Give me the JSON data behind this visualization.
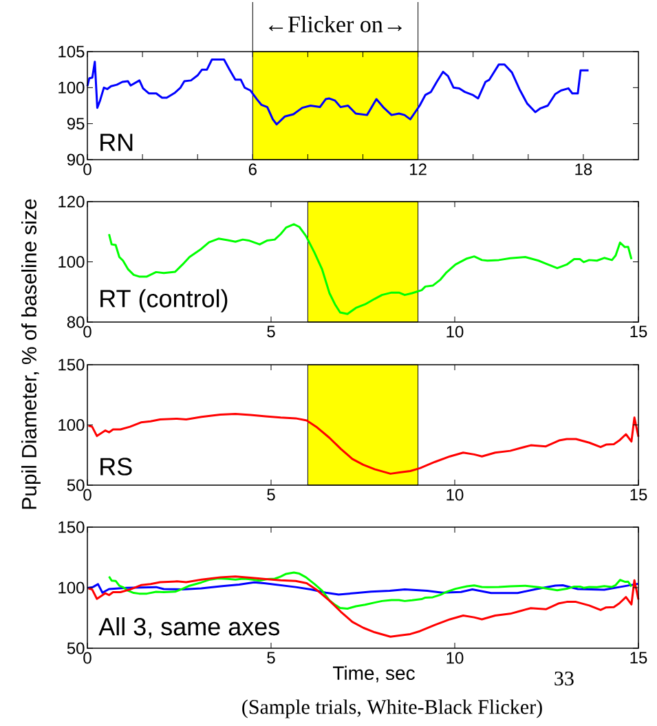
{
  "chart_data": [
    {
      "type": "line",
      "title": "RN",
      "ylabel": "Pupil Diameter, % of baseline size",
      "xlim": [
        0,
        20
      ],
      "ylim": [
        90,
        105
      ],
      "xticks": [
        0,
        {
          "value": 2,
          "label": null
        },
        {
          "value": 4,
          "label": null
        },
        6,
        {
          "value": 8,
          "label": null
        },
        {
          "value": 10,
          "label": null
        },
        12,
        {
          "value": 14,
          "label": null
        },
        {
          "value": 16,
          "label": null
        },
        18
      ],
      "yticks": [
        90,
        95,
        100,
        105
      ],
      "bands": [
        {
          "axis": "x",
          "from": 6,
          "to": 12,
          "label": "←Flicker on→",
          "color": "#ffff00"
        }
      ],
      "series": [
        {
          "color": "#0000ff",
          "x": [
            0,
            0.07,
            0.18,
            0.27,
            0.36,
            0.46,
            0.6,
            0.72,
            0.86,
            1.07,
            1.27,
            1.47,
            1.57,
            1.89,
            2.02,
            2.23,
            2.5,
            2.71,
            2.88,
            3.18,
            3.38,
            3.52,
            3.76,
            4.0,
            4.16,
            4.34,
            4.52,
            4.96,
            5.16,
            5.37,
            5.57,
            5.71,
            5.92,
            6.15,
            6.32,
            6.53,
            6.73,
            6.87,
            7.17,
            7.48,
            7.8,
            8.1,
            8.44,
            8.65,
            8.78,
            8.99,
            9.19,
            9.46,
            9.74,
            10.15,
            10.49,
            10.76,
            11.04,
            11.31,
            11.51,
            11.72,
            12.06,
            12.27,
            12.47,
            12.68,
            12.91,
            13.09,
            13.29,
            13.5,
            13.7,
            13.98,
            14.18,
            14.45,
            14.59,
            14.93,
            15.14,
            15.41,
            15.68,
            15.96,
            16.26,
            16.43,
            16.71,
            16.98,
            17.19,
            17.46,
            17.6,
            17.8,
            17.9,
            18.19
          ],
          "values": [
            100.2,
            101.3,
            101.4,
            103.6,
            97.2,
            98.2,
            100,
            99.8,
            100.2,
            100.4,
            100.8,
            100.9,
            100.3,
            101,
            99.9,
            99.2,
            99.2,
            98.6,
            98.6,
            99.3,
            100,
            100.9,
            101,
            101.7,
            102.5,
            102.5,
            103.9,
            103.9,
            102.5,
            101.1,
            101.1,
            100,
            99.6,
            98.4,
            97.6,
            97.3,
            95.6,
            94.9,
            96,
            96.3,
            97.2,
            97.5,
            97.3,
            98.4,
            98.5,
            98.2,
            97.3,
            97.5,
            96.4,
            96.2,
            98.4,
            97.2,
            96.2,
            96.4,
            96.2,
            95.6,
            97.5,
            99,
            99.4,
            100.8,
            102.2,
            101.6,
            100,
            99.9,
            99.4,
            99,
            98.5,
            100.8,
            101.1,
            103.2,
            103.2,
            102.1,
            99.8,
            97.8,
            96.6,
            97.1,
            97.5,
            99.1,
            99.6,
            99.9,
            99.2,
            99.2,
            102.4,
            102.4
          ]
        }
      ]
    },
    {
      "type": "line",
      "title": "RT (control)",
      "xlim": [
        0,
        15
      ],
      "ylim": [
        80,
        120
      ],
      "xticks": [
        0,
        5,
        10,
        15
      ],
      "yticks": [
        80,
        100,
        120
      ],
      "bands": [
        {
          "axis": "x",
          "from": 6,
          "to": 9,
          "color": "#ffff00"
        }
      ],
      "series": [
        {
          "color": "#00ff00",
          "x": [
            0.59,
            0.66,
            0.77,
            0.87,
            0.97,
            1.11,
            1.26,
            1.41,
            1.62,
            1.87,
            2.08,
            2.39,
            2.59,
            2.78,
            3.1,
            3.31,
            3.57,
            3.82,
            4.03,
            4.23,
            4.39,
            4.69,
            4.9,
            5.1,
            5.26,
            5.41,
            5.62,
            5.77,
            5.95,
            6.18,
            6.39,
            6.59,
            6.74,
            6.88,
            7.08,
            7.31,
            7.56,
            7.82,
            8.02,
            8.28,
            8.48,
            8.64,
            8.84,
            9.1,
            9.2,
            9.4,
            9.61,
            9.76,
            10.02,
            10.33,
            10.53,
            10.74,
            10.89,
            11.2,
            11.51,
            11.92,
            12.28,
            12.48,
            12.79,
            13.05,
            13.25,
            13.41,
            13.51,
            13.66,
            13.87,
            14.07,
            14.28,
            14.38,
            14.5,
            14.63,
            14.72,
            14.81
          ],
          "values": [
            109.2,
            105.8,
            105.6,
            101.6,
            100.4,
            97.5,
            95.7,
            95.1,
            95.1,
            96.6,
            96.3,
            96.7,
            99.1,
            101.6,
            104.3,
            106.5,
            107.7,
            107.2,
            106.7,
            107.4,
            107.1,
            105.8,
            107.1,
            107.4,
            109.2,
            111.4,
            112.5,
            111.6,
            108.6,
            103.1,
            97.5,
            89.6,
            85.9,
            83.2,
            82.7,
            84.7,
            85.9,
            87.7,
            89,
            89.8,
            89.8,
            89,
            89.6,
            90.6,
            91.8,
            92.1,
            94.1,
            96.3,
            99.1,
            101.1,
            101.8,
            100.6,
            100.4,
            100.6,
            101.2,
            101.6,
            100.4,
            99.4,
            97.9,
            99.1,
            100.9,
            100.9,
            99.9,
            100.6,
            100.4,
            101.3,
            100.6,
            102.1,
            106.4,
            104.9,
            105.0,
            100.9
          ]
        }
      ]
    },
    {
      "type": "line",
      "title": "RS",
      "xlim": [
        0,
        15
      ],
      "ylim": [
        50,
        150
      ],
      "xticks": [
        0,
        5,
        10,
        15
      ],
      "yticks": [
        50,
        100,
        150
      ],
      "bands": [
        {
          "axis": "x",
          "from": 6,
          "to": 9,
          "color": "#ffff00"
        }
      ],
      "series": [
        {
          "color": "#ff0000",
          "x": [
            0.03,
            0.13,
            0.26,
            0.49,
            0.59,
            0.7,
            0.9,
            1.16,
            1.46,
            1.72,
            1.98,
            2.44,
            2.69,
            3.11,
            3.62,
            4.03,
            4.44,
            4.85,
            5.26,
            5.67,
            5.97,
            6.23,
            6.59,
            6.9,
            7.21,
            7.51,
            7.82,
            8.25,
            8.53,
            8.79,
            9.05,
            9.46,
            9.87,
            10.23,
            10.53,
            10.74,
            11.1,
            11.51,
            11.81,
            12.07,
            12.48,
            12.84,
            13.05,
            13.3,
            13.66,
            13.97,
            14.12,
            14.33,
            14.48,
            14.66,
            14.81,
            14.89,
            15.0
          ],
          "values": [
            99.4,
            98.5,
            90.8,
            95.4,
            93.9,
            96.3,
            96.3,
            98.5,
            102.1,
            103,
            104.6,
            105.2,
            104.6,
            106.7,
            108.6,
            109.2,
            108.3,
            107.1,
            106.1,
            105.5,
            103.7,
            98.5,
            89.3,
            80.1,
            71.8,
            66.9,
            63.2,
            59.5,
            60.7,
            61.7,
            64.1,
            69.3,
            73.9,
            77,
            75.5,
            73.9,
            77,
            78.5,
            81,
            83.1,
            82.2,
            87.1,
            88.3,
            88.3,
            85.3,
            81.6,
            83.7,
            84.0,
            87.1,
            92.3,
            86.2,
            106.1,
            90.2
          ]
        }
      ]
    },
    {
      "type": "line",
      "title": "All 3, same axes",
      "xlabel": "Time, sec",
      "xlim": [
        0,
        15
      ],
      "ylim": [
        50,
        150
      ],
      "xticks": [
        0,
        5,
        10,
        15
      ],
      "yticks": [
        50,
        100,
        150
      ],
      "annotations": [
        "33",
        "(Sample trials, White-Black Flicker)"
      ],
      "series": [
        {
          "color": "#0000ff",
          "x": [
            0,
            0.15,
            0.29,
            0.41,
            0.59,
            1.06,
            1.87,
            2.08,
            2.59,
            3.1,
            3.62,
            4.13,
            4.54,
            4.85,
            5.26,
            5.67,
            6.08,
            6.49,
            6.84,
            7.31,
            7.72,
            8.23,
            8.64,
            9.25,
            9.66,
            10.17,
            10.48,
            10.99,
            11.71,
            12.22,
            12.74,
            12.94,
            13.35,
            14.07,
            14.48,
            14.99
          ],
          "values": [
            99.8,
            100.5,
            102.9,
            95.9,
            98.9,
            99.8,
            100.5,
            98.9,
            98.6,
            99.5,
            101.1,
            102.6,
            104.4,
            103.5,
            102,
            100.5,
            98.6,
            95.9,
            94.3,
            95.6,
            96.8,
            97.4,
            98.6,
            97.4,
            95.9,
            96.5,
            98.6,
            95.6,
            95.6,
            98.9,
            101.7,
            102,
            98.9,
            98.3,
            100.5,
            103.2
          ]
        },
        {
          "color": "#00ff00",
          "x": [
            0.59,
            0.66,
            0.77,
            0.87,
            0.97,
            1.11,
            1.26,
            1.41,
            1.62,
            1.87,
            2.08,
            2.39,
            2.59,
            2.78,
            3.1,
            3.31,
            3.57,
            3.82,
            4.03,
            4.23,
            4.39,
            4.69,
            4.9,
            5.1,
            5.26,
            5.41,
            5.62,
            5.77,
            5.95,
            6.18,
            6.39,
            6.59,
            6.74,
            6.88,
            7.08,
            7.31,
            7.56,
            7.82,
            8.02,
            8.28,
            8.48,
            8.64,
            8.84,
            9.1,
            9.2,
            9.4,
            9.61,
            9.76,
            10.02,
            10.33,
            10.53,
            10.74,
            10.89,
            11.2,
            11.51,
            11.92,
            12.28,
            12.48,
            12.79,
            13.05,
            13.25,
            13.41,
            13.51,
            13.66,
            13.87,
            14.07,
            14.28,
            14.38,
            14.5,
            14.63,
            14.72,
            14.81
          ],
          "values": [
            109.2,
            105.8,
            105.6,
            101.6,
            100.4,
            97.5,
            95.7,
            95.1,
            95.1,
            96.6,
            96.3,
            96.7,
            99.1,
            101.6,
            104.3,
            106.5,
            107.7,
            107.2,
            106.7,
            107.4,
            107.1,
            105.8,
            107.1,
            107.4,
            109.2,
            111.4,
            112.5,
            111.6,
            108.6,
            103.1,
            97.5,
            89.6,
            85.9,
            83.2,
            82.7,
            84.7,
            85.9,
            87.7,
            89,
            89.8,
            89.8,
            89,
            89.6,
            90.6,
            91.8,
            92.1,
            94.1,
            96.3,
            99.1,
            101.1,
            101.8,
            100.6,
            100.4,
            100.6,
            101.2,
            101.6,
            100.4,
            99.4,
            97.9,
            99.1,
            100.9,
            100.9,
            99.9,
            100.6,
            100.4,
            101.3,
            100.6,
            102.1,
            106.4,
            104.9,
            105.0,
            100.9
          ]
        },
        {
          "color": "#ff0000",
          "x": [
            0.03,
            0.13,
            0.26,
            0.49,
            0.59,
            0.7,
            0.9,
            1.16,
            1.46,
            1.72,
            1.98,
            2.44,
            2.69,
            3.11,
            3.62,
            4.03,
            4.44,
            4.85,
            5.26,
            5.67,
            5.97,
            6.23,
            6.59,
            6.9,
            7.21,
            7.51,
            7.82,
            8.25,
            8.53,
            8.79,
            9.05,
            9.46,
            9.87,
            10.23,
            10.53,
            10.74,
            11.1,
            11.51,
            11.81,
            12.07,
            12.48,
            12.84,
            13.05,
            13.3,
            13.66,
            13.97,
            14.12,
            14.33,
            14.48,
            14.66,
            14.81,
            14.89,
            15.0
          ],
          "values": [
            99.4,
            98.5,
            90.8,
            95.4,
            93.9,
            96.3,
            96.3,
            98.5,
            102.1,
            103,
            104.6,
            105.2,
            104.6,
            106.7,
            108.6,
            109.2,
            108.3,
            107.1,
            106.1,
            105.5,
            103.7,
            98.5,
            89.3,
            80.1,
            71.8,
            66.9,
            63.2,
            59.5,
            60.7,
            61.7,
            64.1,
            69.3,
            73.9,
            77,
            75.5,
            73.9,
            77,
            78.5,
            81,
            83.1,
            82.2,
            87.1,
            88.3,
            88.3,
            85.3,
            81.6,
            83.7,
            84.0,
            87.1,
            92.3,
            86.2,
            106.1,
            90.2
          ]
        }
      ]
    }
  ]
}
